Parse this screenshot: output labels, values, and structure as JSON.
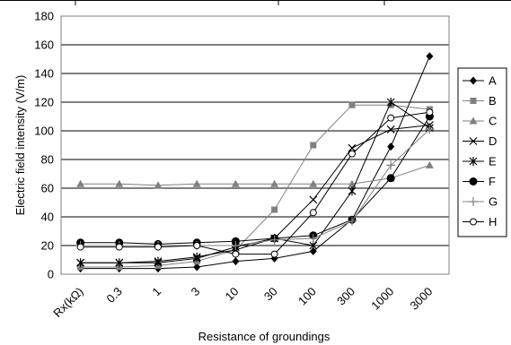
{
  "chart_data": {
    "type": "line",
    "title": "",
    "xlabel": "Resistance of groundings",
    "ylabel": "Electric field intensity (V/m)",
    "categories": [
      "Rx(kΩ)",
      "0.3",
      "1",
      "3",
      "10",
      "30",
      "100",
      "300",
      "1000",
      "3000"
    ],
    "ylim": [
      0,
      180
    ],
    "yticks": [
      0,
      20,
      40,
      60,
      80,
      100,
      120,
      140,
      160,
      180
    ],
    "grid": "horizontal",
    "legend_position": "right",
    "series": [
      {
        "name": "A",
        "marker": "diamond",
        "color": "#000000",
        "values": [
          4,
          4,
          4,
          5,
          9,
          11,
          16,
          38,
          89,
          152
        ]
      },
      {
        "name": "B",
        "marker": "square",
        "color": "#808080",
        "values": [
          5,
          5,
          6,
          9,
          17,
          45,
          90,
          118,
          118,
          115
        ]
      },
      {
        "name": "C",
        "marker": "triangle",
        "color": "#808080",
        "values": [
          63,
          63,
          62,
          63,
          63,
          63,
          63,
          63,
          67,
          76
        ]
      },
      {
        "name": "D",
        "marker": "x",
        "color": "#000000",
        "values": [
          8,
          8,
          8,
          11,
          19,
          25,
          52,
          88,
          101,
          104
        ]
      },
      {
        "name": "E",
        "marker": "star",
        "color": "#000000",
        "values": [
          8,
          8,
          9,
          12,
          17,
          25,
          20,
          58,
          120,
          102
        ]
      },
      {
        "name": "F",
        "marker": "circle",
        "color": "#000000",
        "values": [
          22,
          22,
          21,
          22,
          23,
          25,
          27,
          38,
          67,
          110
        ]
      },
      {
        "name": "G",
        "marker": "plus",
        "color": "#808080",
        "values": [
          20,
          20,
          20,
          20,
          20,
          24,
          25,
          37,
          76,
          101
        ]
      },
      {
        "name": "H",
        "marker": "open-circle",
        "color": "#000000",
        "values": [
          19,
          19,
          19,
          20,
          14,
          14,
          43,
          84,
          109,
          113
        ]
      }
    ]
  }
}
